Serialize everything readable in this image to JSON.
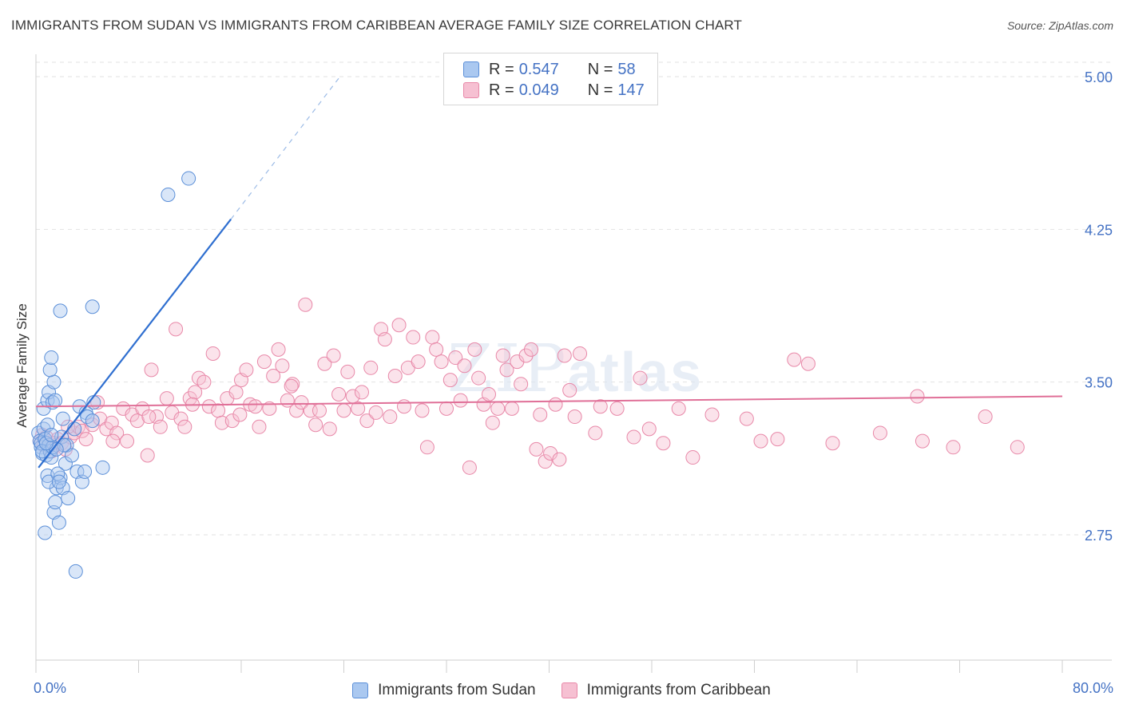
{
  "header": {
    "title": "IMMIGRANTS FROM SUDAN VS IMMIGRANTS FROM CARIBBEAN AVERAGE FAMILY SIZE CORRELATION CHART",
    "source": "Source: ZipAtlas.com"
  },
  "legend_top": {
    "rows": [
      {
        "r_label": "R =",
        "r_value": "0.547",
        "n_label": "N =",
        "n_value": "58"
      },
      {
        "r_label": "R =",
        "r_value": "0.049",
        "n_label": "N =",
        "n_value": "147"
      }
    ]
  },
  "legend_bottom": {
    "items": [
      "Immigrants from Sudan",
      "Immigrants from Caribbean"
    ]
  },
  "colors": {
    "sudan_fill": "#aac8f0",
    "sudan_stroke": "#5b8fd8",
    "sudan_line": "#2f6fd0",
    "caribbean_fill": "#f6c0d2",
    "caribbean_stroke": "#e888a8",
    "caribbean_line": "#e07098",
    "axis_text": "#4472c4",
    "grid": "#e2e2e2"
  },
  "chart_data": {
    "type": "scatter",
    "title": "IMMIGRANTS FROM SUDAN VS IMMIGRANTS FROM CARIBBEAN AVERAGE FAMILY SIZE CORRELATION CHART",
    "xlabel": "",
    "ylabel": "Average Family Size",
    "xlim": [
      0,
      80
    ],
    "ylim": [
      2.0,
      5.1
    ],
    "x_tick_labels": [
      "0.0%",
      "80.0%"
    ],
    "y_ticks": [
      2.75,
      3.5,
      4.25,
      5.0
    ],
    "y_tick_labels": [
      "2.75",
      "3.50",
      "4.25",
      "5.00"
    ],
    "grid": "horizontal dashed",
    "legend_placement": "top-center and bottom",
    "watermark": "ZIPatlas",
    "series": [
      {
        "name": "Immigrants from Sudan",
        "R": 0.547,
        "N": 58,
        "trend": {
          "x0": 0.2,
          "y0": 3.08,
          "x1": 15.2,
          "y1": 4.3,
          "dash_to_x": 23.7,
          "dash_to_y": 5.0
        },
        "points": [
          [
            0.2,
            3.25
          ],
          [
            0.3,
            3.21
          ],
          [
            0.4,
            3.18
          ],
          [
            0.5,
            3.15
          ],
          [
            0.6,
            3.27
          ],
          [
            0.4,
            3.2
          ],
          [
            0.7,
            3.22
          ],
          [
            0.8,
            3.14
          ],
          [
            0.9,
            3.29
          ],
          [
            1.0,
            3.19
          ],
          [
            1.1,
            3.16
          ],
          [
            1.2,
            3.13
          ],
          [
            0.6,
            3.37
          ],
          [
            0.9,
            3.41
          ],
          [
            1.0,
            3.45
          ],
          [
            1.3,
            3.4
          ],
          [
            1.4,
            3.5
          ],
          [
            1.5,
            3.41
          ],
          [
            1.1,
            3.56
          ],
          [
            1.2,
            3.62
          ],
          [
            0.7,
            2.76
          ],
          [
            1.4,
            2.86
          ],
          [
            1.5,
            2.91
          ],
          [
            1.6,
            2.98
          ],
          [
            1.8,
            2.81
          ],
          [
            1.9,
            3.03
          ],
          [
            2.1,
            2.98
          ],
          [
            2.3,
            3.1
          ],
          [
            2.5,
            2.93
          ],
          [
            0.9,
            3.04
          ],
          [
            1.0,
            3.01
          ],
          [
            1.7,
            3.05
          ],
          [
            1.8,
            3.01
          ],
          [
            2.0,
            3.23
          ],
          [
            2.1,
            3.32
          ],
          [
            2.4,
            3.19
          ],
          [
            2.8,
            3.14
          ],
          [
            3.2,
            3.06
          ],
          [
            3.6,
            3.01
          ],
          [
            3.8,
            3.06
          ],
          [
            3.4,
            3.38
          ],
          [
            3.9,
            3.35
          ],
          [
            4.0,
            3.33
          ],
          [
            4.4,
            3.31
          ],
          [
            5.2,
            3.08
          ],
          [
            1.9,
            3.85
          ],
          [
            4.4,
            3.87
          ],
          [
            4.5,
            3.4
          ],
          [
            3.1,
            2.57
          ],
          [
            10.3,
            4.42
          ],
          [
            11.9,
            4.5
          ],
          [
            0.5,
            3.16
          ],
          [
            1.3,
            3.18
          ],
          [
            2.2,
            3.19
          ],
          [
            1.6,
            3.17
          ],
          [
            0.8,
            3.2
          ],
          [
            3.0,
            3.27
          ],
          [
            1.2,
            3.24
          ]
        ]
      },
      {
        "name": "Immigrants from Caribbean",
        "R": 0.049,
        "N": 147,
        "trend": {
          "x0": 0,
          "y0": 3.38,
          "x1": 80,
          "y1": 3.43
        },
        "points": [
          [
            0.3,
            3.21
          ],
          [
            0.5,
            3.24
          ],
          [
            0.6,
            3.19
          ],
          [
            0.8,
            3.23
          ],
          [
            1.0,
            3.18
          ],
          [
            1.2,
            3.16
          ],
          [
            1.5,
            3.19
          ],
          [
            1.7,
            3.22
          ],
          [
            2.0,
            3.2
          ],
          [
            2.3,
            3.17
          ],
          [
            2.7,
            3.23
          ],
          [
            3.0,
            3.25
          ],
          [
            3.3,
            3.28
          ],
          [
            3.6,
            3.26
          ],
          [
            3.9,
            3.22
          ],
          [
            4.4,
            3.29
          ],
          [
            4.8,
            3.4
          ],
          [
            5.0,
            3.32
          ],
          [
            5.5,
            3.27
          ],
          [
            5.9,
            3.3
          ],
          [
            6.3,
            3.25
          ],
          [
            6.8,
            3.37
          ],
          [
            7.1,
            3.21
          ],
          [
            7.5,
            3.34
          ],
          [
            7.9,
            3.31
          ],
          [
            8.3,
            3.37
          ],
          [
            8.7,
            3.14
          ],
          [
            9.0,
            3.56
          ],
          [
            9.4,
            3.33
          ],
          [
            9.7,
            3.28
          ],
          [
            10.2,
            3.42
          ],
          [
            10.6,
            3.35
          ],
          [
            10.9,
            3.76
          ],
          [
            11.3,
            3.32
          ],
          [
            11.6,
            3.28
          ],
          [
            12.0,
            3.42
          ],
          [
            12.4,
            3.45
          ],
          [
            12.7,
            3.52
          ],
          [
            13.1,
            3.5
          ],
          [
            13.5,
            3.38
          ],
          [
            13.8,
            3.64
          ],
          [
            14.2,
            3.36
          ],
          [
            14.5,
            3.3
          ],
          [
            14.9,
            3.42
          ],
          [
            15.3,
            3.31
          ],
          [
            15.6,
            3.45
          ],
          [
            16.0,
            3.51
          ],
          [
            16.4,
            3.56
          ],
          [
            16.7,
            3.39
          ],
          [
            17.1,
            3.38
          ],
          [
            17.4,
            3.28
          ],
          [
            17.8,
            3.6
          ],
          [
            18.2,
            3.37
          ],
          [
            18.5,
            3.53
          ],
          [
            18.9,
            3.66
          ],
          [
            19.2,
            3.58
          ],
          [
            19.6,
            3.41
          ],
          [
            20.0,
            3.49
          ],
          [
            20.3,
            3.36
          ],
          [
            20.7,
            3.4
          ],
          [
            21.0,
            3.88
          ],
          [
            21.4,
            3.36
          ],
          [
            21.8,
            3.29
          ],
          [
            22.1,
            3.36
          ],
          [
            22.5,
            3.59
          ],
          [
            22.9,
            3.27
          ],
          [
            23.2,
            3.63
          ],
          [
            23.6,
            3.44
          ],
          [
            24.0,
            3.36
          ],
          [
            24.3,
            3.55
          ],
          [
            24.7,
            3.43
          ],
          [
            25.1,
            3.37
          ],
          [
            25.4,
            3.45
          ],
          [
            25.8,
            3.31
          ],
          [
            26.1,
            3.57
          ],
          [
            26.5,
            3.35
          ],
          [
            26.9,
            3.76
          ],
          [
            27.2,
            3.71
          ],
          [
            27.6,
            3.33
          ],
          [
            28.0,
            3.53
          ],
          [
            28.3,
            3.78
          ],
          [
            28.7,
            3.38
          ],
          [
            29.0,
            3.57
          ],
          [
            29.4,
            3.72
          ],
          [
            29.8,
            3.6
          ],
          [
            30.1,
            3.36
          ],
          [
            30.5,
            3.18
          ],
          [
            30.9,
            3.72
          ],
          [
            31.2,
            3.66
          ],
          [
            31.6,
            3.6
          ],
          [
            32.0,
            3.37
          ],
          [
            32.3,
            3.51
          ],
          [
            32.7,
            3.62
          ],
          [
            33.1,
            3.41
          ],
          [
            33.4,
            3.58
          ],
          [
            33.8,
            3.08
          ],
          [
            34.2,
            3.66
          ],
          [
            34.5,
            3.52
          ],
          [
            34.9,
            3.39
          ],
          [
            35.3,
            3.44
          ],
          [
            35.6,
            3.3
          ],
          [
            36.0,
            3.37
          ],
          [
            36.4,
            3.63
          ],
          [
            36.7,
            3.56
          ],
          [
            37.1,
            3.37
          ],
          [
            37.5,
            3.6
          ],
          [
            37.8,
            3.49
          ],
          [
            38.2,
            3.63
          ],
          [
            38.6,
            3.66
          ],
          [
            39.0,
            3.17
          ],
          [
            39.3,
            3.34
          ],
          [
            39.7,
            3.11
          ],
          [
            40.1,
            3.15
          ],
          [
            40.5,
            3.39
          ],
          [
            40.8,
            3.12
          ],
          [
            41.2,
            3.63
          ],
          [
            41.6,
            3.46
          ],
          [
            42.0,
            3.33
          ],
          [
            42.4,
            3.64
          ],
          [
            43.6,
            3.25
          ],
          [
            44.0,
            3.38
          ],
          [
            45.3,
            3.37
          ],
          [
            46.6,
            3.23
          ],
          [
            47.1,
            3.52
          ],
          [
            47.8,
            3.27
          ],
          [
            48.9,
            3.2
          ],
          [
            50.1,
            3.37
          ],
          [
            51.2,
            3.13
          ],
          [
            52.7,
            3.34
          ],
          [
            55.4,
            3.32
          ],
          [
            56.5,
            3.21
          ],
          [
            57.8,
            3.22
          ],
          [
            59.1,
            3.61
          ],
          [
            60.2,
            3.59
          ],
          [
            62.1,
            3.2
          ],
          [
            65.8,
            3.25
          ],
          [
            68.7,
            3.43
          ],
          [
            69.1,
            3.21
          ],
          [
            71.5,
            3.18
          ],
          [
            74.0,
            3.33
          ],
          [
            76.5,
            3.18
          ],
          [
            1.4,
            3.2
          ],
          [
            2.5,
            3.28
          ],
          [
            6.0,
            3.21
          ],
          [
            8.8,
            3.33
          ],
          [
            12.2,
            3.39
          ],
          [
            15.9,
            3.34
          ],
          [
            19.9,
            3.48
          ]
        ]
      }
    ]
  }
}
